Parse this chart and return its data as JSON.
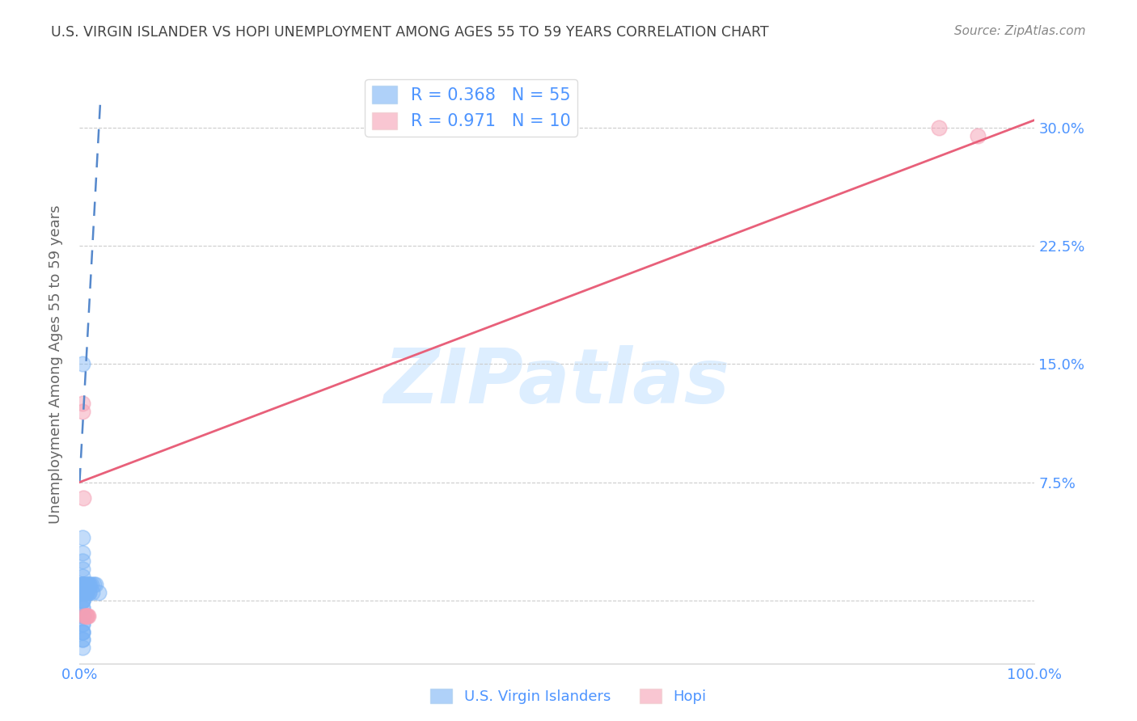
{
  "title": "U.S. VIRGIN ISLANDER VS HOPI UNEMPLOYMENT AMONG AGES 55 TO 59 YEARS CORRELATION CHART",
  "source": "Source: ZipAtlas.com",
  "ylabel": "Unemployment Among Ages 55 to 59 years",
  "xlim": [
    0.0,
    1.0
  ],
  "ylim": [
    -0.04,
    0.34
  ],
  "xticks": [
    0.0,
    0.1,
    0.2,
    0.3,
    0.4,
    0.5,
    0.6,
    0.7,
    0.8,
    0.9,
    1.0
  ],
  "xticklabels": [
    "0.0%",
    "",
    "",
    "",
    "",
    "",
    "",
    "",
    "",
    "",
    "100.0%"
  ],
  "yticks": [
    0.0,
    0.075,
    0.15,
    0.225,
    0.3
  ],
  "yticklabels": [
    "",
    "7.5%",
    "15.0%",
    "22.5%",
    "30.0%"
  ],
  "background_color": "#ffffff",
  "grid_color": "#cccccc",
  "title_color": "#444444",
  "axis_color": "#4d94ff",
  "legend_R1": "0.368",
  "legend_N1": "55",
  "legend_R2": "0.971",
  "legend_N2": "10",
  "legend_color1": "#7ab3f5",
  "legend_color2": "#f5a0b5",
  "watermark": "ZIPatlas",
  "watermark_color": "#ddeeff",
  "blue_scatter_x": [
    0.003,
    0.003,
    0.003,
    0.003,
    0.003,
    0.003,
    0.003,
    0.003,
    0.003,
    0.003,
    0.003,
    0.003,
    0.003,
    0.003,
    0.003,
    0.003,
    0.003,
    0.003,
    0.003,
    0.003,
    0.003,
    0.003,
    0.003,
    0.003,
    0.003,
    0.003,
    0.003,
    0.003,
    0.003,
    0.003,
    0.004,
    0.004,
    0.005,
    0.005,
    0.005,
    0.005,
    0.005,
    0.005,
    0.006,
    0.006,
    0.006,
    0.006,
    0.007,
    0.008,
    0.008,
    0.009,
    0.01,
    0.01,
    0.01,
    0.011,
    0.012,
    0.013,
    0.015,
    0.017,
    0.02
  ],
  "blue_scatter_y": [
    0.0,
    0.0,
    0.0,
    0.0,
    -0.005,
    -0.005,
    -0.01,
    -0.01,
    -0.015,
    -0.015,
    -0.02,
    -0.02,
    -0.02,
    -0.025,
    -0.025,
    -0.03,
    0.005,
    0.005,
    0.005,
    0.01,
    0.01,
    0.01,
    0.01,
    0.01,
    0.015,
    0.02,
    0.025,
    0.03,
    0.04,
    0.15,
    0.01,
    0.005,
    0.005,
    0.005,
    0.005,
    0.005,
    0.005,
    0.01,
    0.005,
    0.005,
    0.01,
    0.005,
    0.005,
    0.005,
    0.01,
    0.01,
    0.005,
    0.005,
    0.01,
    0.01,
    0.01,
    0.005,
    0.01,
    0.01,
    0.005
  ],
  "pink_scatter_x": [
    0.003,
    0.003,
    0.004,
    0.005,
    0.006,
    0.007,
    0.008,
    0.009,
    0.9,
    0.94
  ],
  "pink_scatter_y": [
    0.12,
    0.125,
    0.065,
    -0.01,
    -0.01,
    -0.01,
    -0.01,
    -0.01,
    0.3,
    0.295
  ],
  "blue_line_x0": 0.0,
  "blue_line_x1": 0.022,
  "blue_line_y0": 0.075,
  "blue_line_y1": 0.32,
  "pink_line_x0": 0.0,
  "pink_line_x1": 1.0,
  "pink_line_y0": 0.075,
  "pink_line_y1": 0.305
}
